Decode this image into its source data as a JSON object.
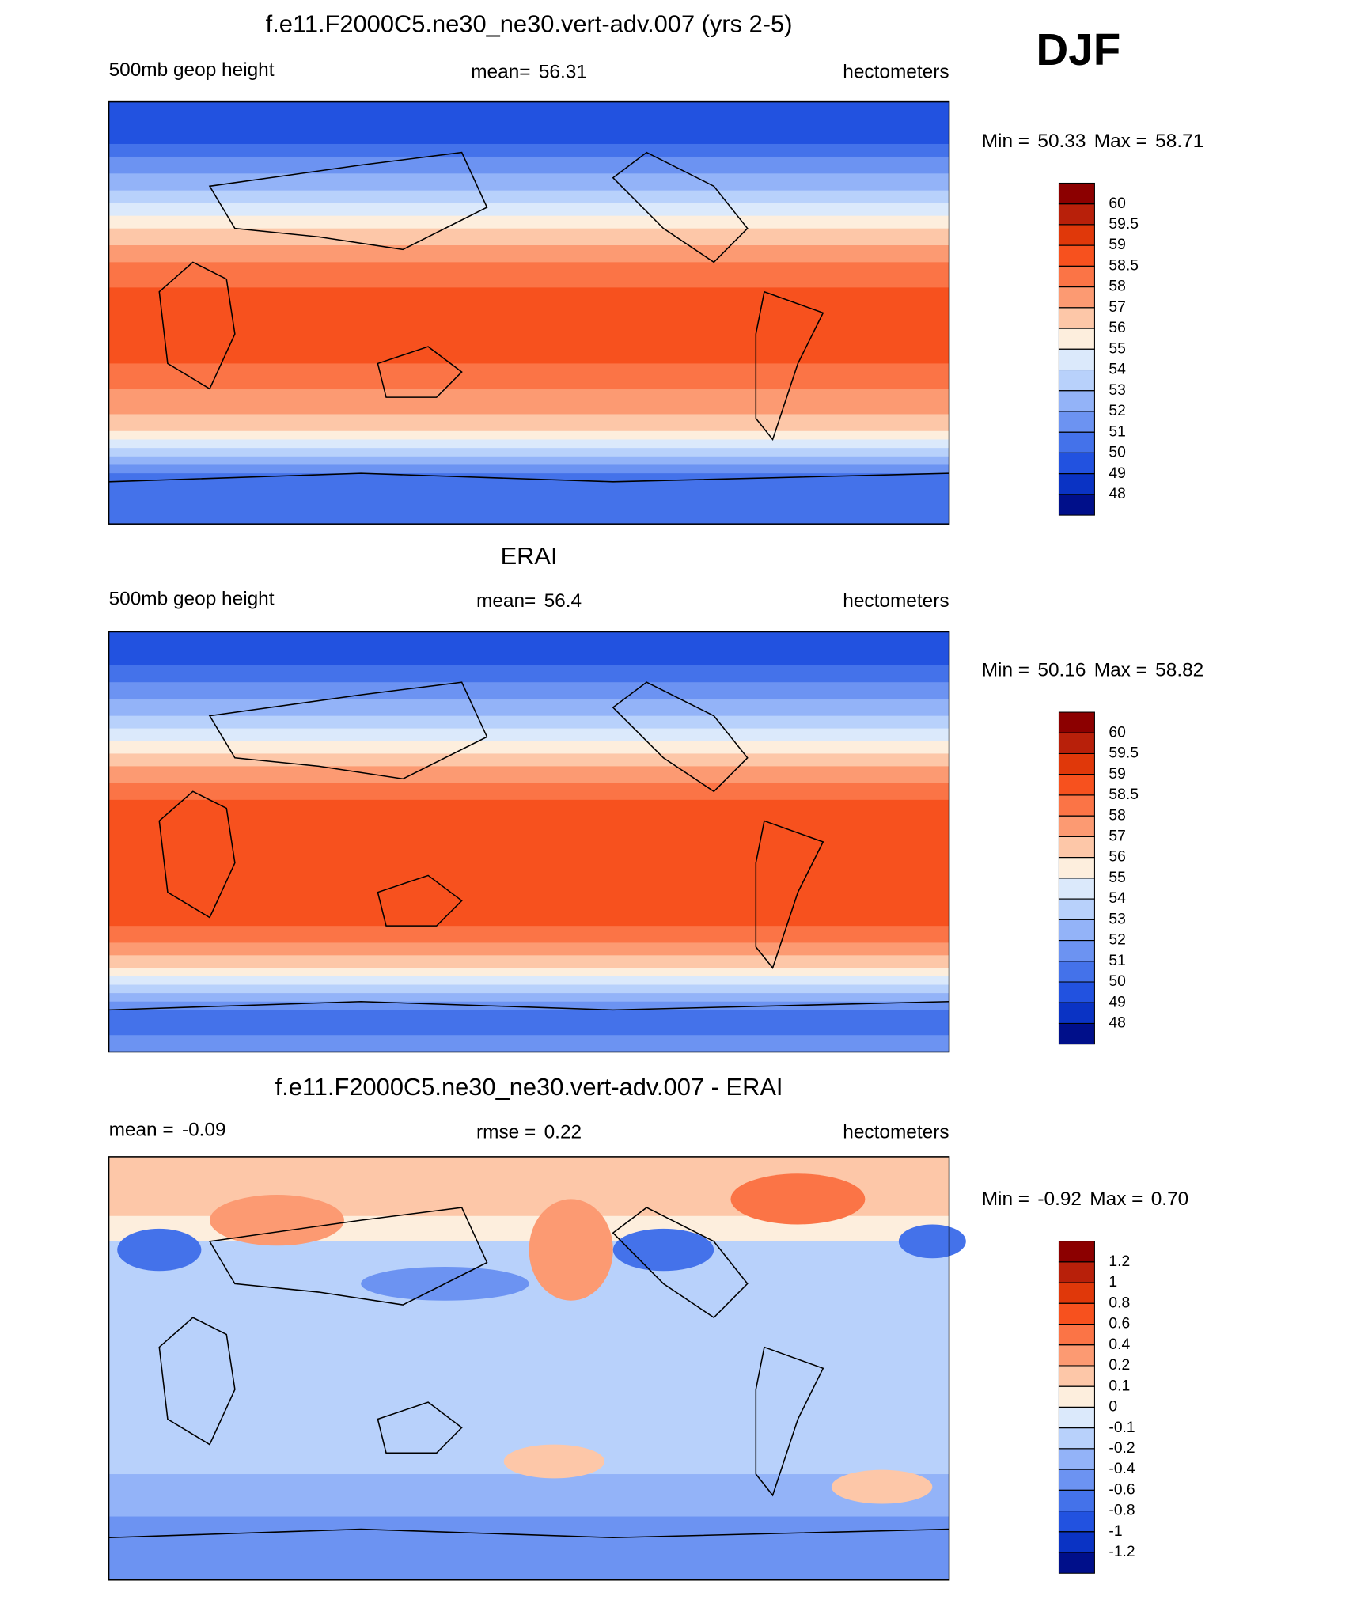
{
  "title": "DJF",
  "panels": [
    {
      "title": "f.e11.F2000C5.ne30_ne30.vert-adv.007 (yrs 2-5)",
      "left": [
        "500mb geop height"
      ],
      "center": [
        "mean=",
        56.31
      ],
      "right": [
        "hectometers"
      ],
      "stats": [
        "Min =",
        50.33,
        "Max =",
        58.71
      ],
      "colorbar": {
        "levels": [
          60,
          59.5,
          59,
          58.5,
          58,
          57,
          56,
          55,
          54,
          53,
          52,
          51,
          50,
          49,
          48
        ],
        "colors": [
          "#8c0000",
          "#b8200a",
          "#e0380a",
          "#f7511e",
          "#fb7446",
          "#fc9a72",
          "#fdc7a8",
          "#fdeedd",
          "#dbe9fb",
          "#b8d1fb",
          "#93b3f8",
          "#6c93f2",
          "#4472ea",
          "#2252e0",
          "#0a33c4",
          "#000f8a"
        ]
      }
    },
    {
      "title": "ERAI",
      "left": [
        "500mb geop height"
      ],
      "center": [
        "mean=",
        56.4
      ],
      "right": [
        "hectometers"
      ],
      "stats": [
        "Min =",
        50.16,
        "Max =",
        58.82
      ],
      "colorbar": {
        "levels": [
          60,
          59.5,
          59,
          58.5,
          58,
          57,
          56,
          55,
          54,
          53,
          52,
          51,
          50,
          49,
          48
        ],
        "colors": [
          "#8c0000",
          "#b8200a",
          "#e0380a",
          "#f7511e",
          "#fb7446",
          "#fc9a72",
          "#fdc7a8",
          "#fdeedd",
          "#dbe9fb",
          "#b8d1fb",
          "#93b3f8",
          "#6c93f2",
          "#4472ea",
          "#2252e0",
          "#0a33c4",
          "#000f8a"
        ]
      }
    },
    {
      "title": "f.e11.F2000C5.ne30_ne30.vert-adv.007 - ERAI",
      "left": [
        "mean =",
        -0.09
      ],
      "center": [
        "rmse =",
        0.22
      ],
      "right": [
        "hectometers"
      ],
      "stats": [
        "Min =",
        -0.92,
        "Max =",
        {
          "value": 0.7,
          "label": "0.70"
        }
      ],
      "colorbar": {
        "levels": [
          1.2,
          1,
          0.8,
          0.6,
          0.4,
          0.2,
          0.1,
          0,
          -0.1,
          -0.2,
          -0.4,
          -0.6,
          -0.8,
          -1,
          -1.2
        ],
        "colors": [
          "#8c0000",
          "#b8200a",
          "#e0380a",
          "#f7511e",
          "#fb7446",
          "#fc9a72",
          "#fdc7a8",
          "#fdeedd",
          "#dbe9fb",
          "#b8d1fb",
          "#93b3f8",
          "#6c93f2",
          "#4472ea",
          "#2252e0",
          "#0a33c4",
          "#000f8a"
        ]
      }
    }
  ]
}
